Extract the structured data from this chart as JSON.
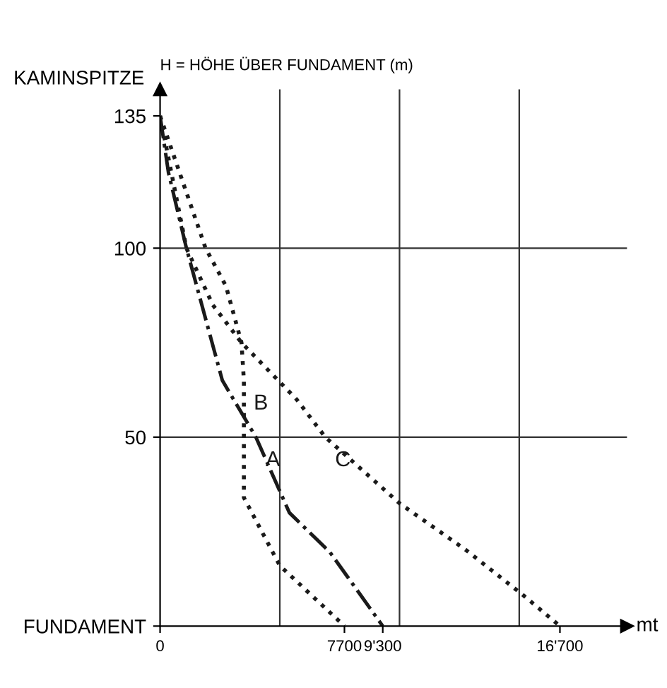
{
  "chart_data": {
    "type": "line",
    "xlabel": "mt",
    "ylabel": "H = HÖHE ÜBER FUNDAMENT (m)",
    "xlim": [
      0,
      19500
    ],
    "ylim": [
      0,
      142
    ],
    "xticks": [
      0,
      {
        "value": 7700,
        "label": "7700"
      },
      {
        "value": 9300,
        "label": "9'300"
      },
      {
        "value": 16700,
        "label": "16'700"
      }
    ],
    "yticks": [
      {
        "value": 0,
        "label": "FUNDAMENT"
      },
      50,
      100,
      135
    ],
    "annotations": [
      {
        "text": "KAMINSPITZE",
        "x": 0,
        "y": 135
      }
    ],
    "ref_lines": [
      {
        "axis": "x",
        "value": 5000,
        "label": null
      },
      {
        "axis": "x",
        "value": 10000,
        "label": null
      },
      {
        "axis": "x",
        "value": 15000,
        "label": null
      },
      {
        "axis": "y",
        "value": 50,
        "label": null
      },
      {
        "axis": "y",
        "value": 100,
        "label": null
      }
    ],
    "grid": false,
    "legend": false,
    "series": [
      {
        "name": "A",
        "color": "#1a1a1a",
        "line_style": "dashdot",
        "x": [
          0,
          350,
          1100,
          2600,
          4000,
          5400,
          7100,
          9300
        ],
        "values": [
          135,
          120,
          100,
          65,
          50,
          30,
          19.5,
          0
        ]
      },
      {
        "name": "B",
        "color": "#1a1a1a",
        "line_style": "dotted",
        "x": [
          0,
          1900,
          2750,
          3400,
          3500,
          3500,
          5000,
          7700
        ],
        "values": [
          135,
          100,
          90,
          75,
          65,
          34,
          16,
          0
        ]
      },
      {
        "name": "C",
        "color": "#1a1a1a",
        "line_style": "dotted",
        "x": [
          0,
          1100,
          2200,
          3400,
          5700,
          6900,
          10000,
          12800,
          15200,
          16700
        ],
        "values": [
          135,
          100,
          85,
          75,
          60,
          50,
          32.5,
          20,
          8,
          0
        ]
      }
    ]
  }
}
